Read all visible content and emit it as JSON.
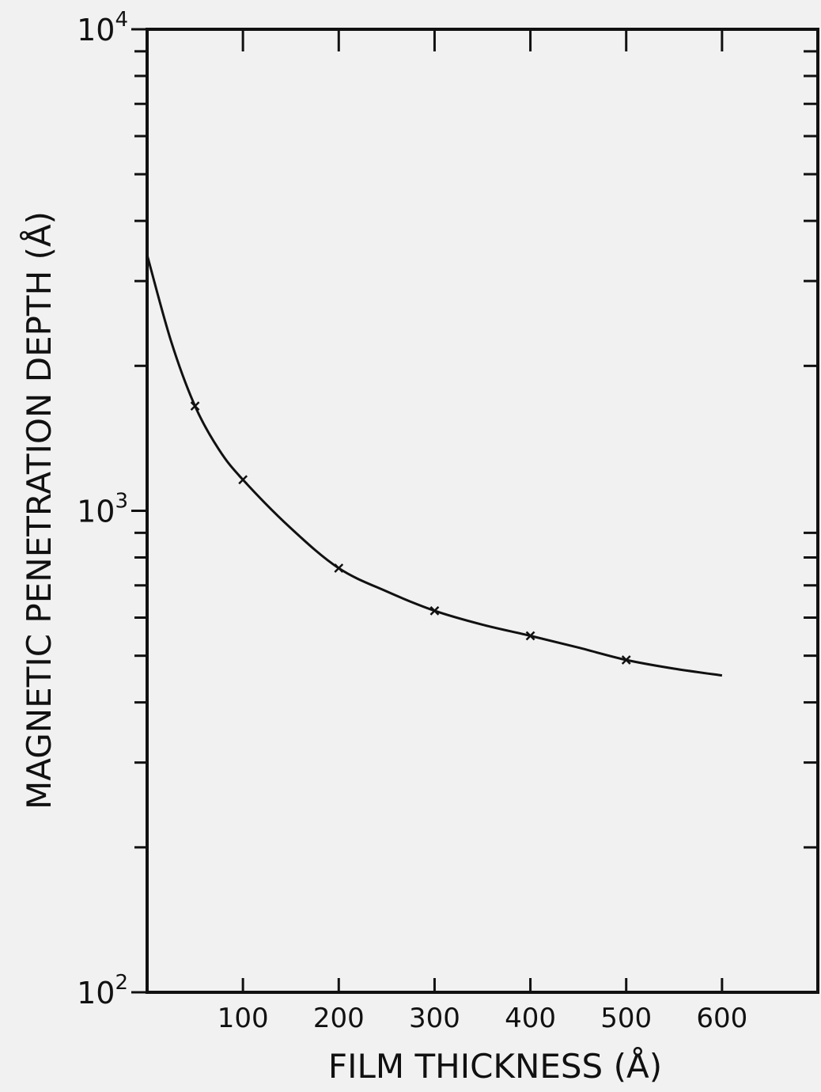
{
  "chart_data": {
    "type": "line",
    "title": "",
    "xlabel": "FILM THICKNESS (Å)",
    "ylabel": "MAGNETIC  PENETRATION  DEPTH  (Å)",
    "x_scale": "linear",
    "y_scale": "log",
    "xlim": [
      0,
      700
    ],
    "ylim": [
      100,
      10000
    ],
    "x_ticks": [
      100,
      200,
      300,
      400,
      500,
      600
    ],
    "x_tick_labels": [
      "100",
      "200",
      "300",
      "400",
      "500",
      "600"
    ],
    "y_tick_labels": [
      {
        "value": 100,
        "base": "10",
        "exp": "2"
      },
      {
        "value": 1000,
        "base": "10",
        "exp": "3"
      },
      {
        "value": 10000,
        "base": "10",
        "exp": "4"
      }
    ],
    "grid": false,
    "series": [
      {
        "marker": "x",
        "x": [
          50,
          100,
          200,
          300,
          400,
          500
        ],
        "y": [
          1650,
          1160,
          760,
          620,
          550,
          490
        ]
      },
      {
        "line": "solid",
        "x": [
          0,
          25,
          50,
          75,
          100,
          150,
          200,
          250,
          300,
          350,
          400,
          450,
          500,
          550,
          600
        ],
        "y": [
          3400,
          2250,
          1650,
          1340,
          1160,
          920,
          760,
          680,
          620,
          580,
          550,
          520,
          490,
          470,
          455
        ]
      }
    ]
  }
}
